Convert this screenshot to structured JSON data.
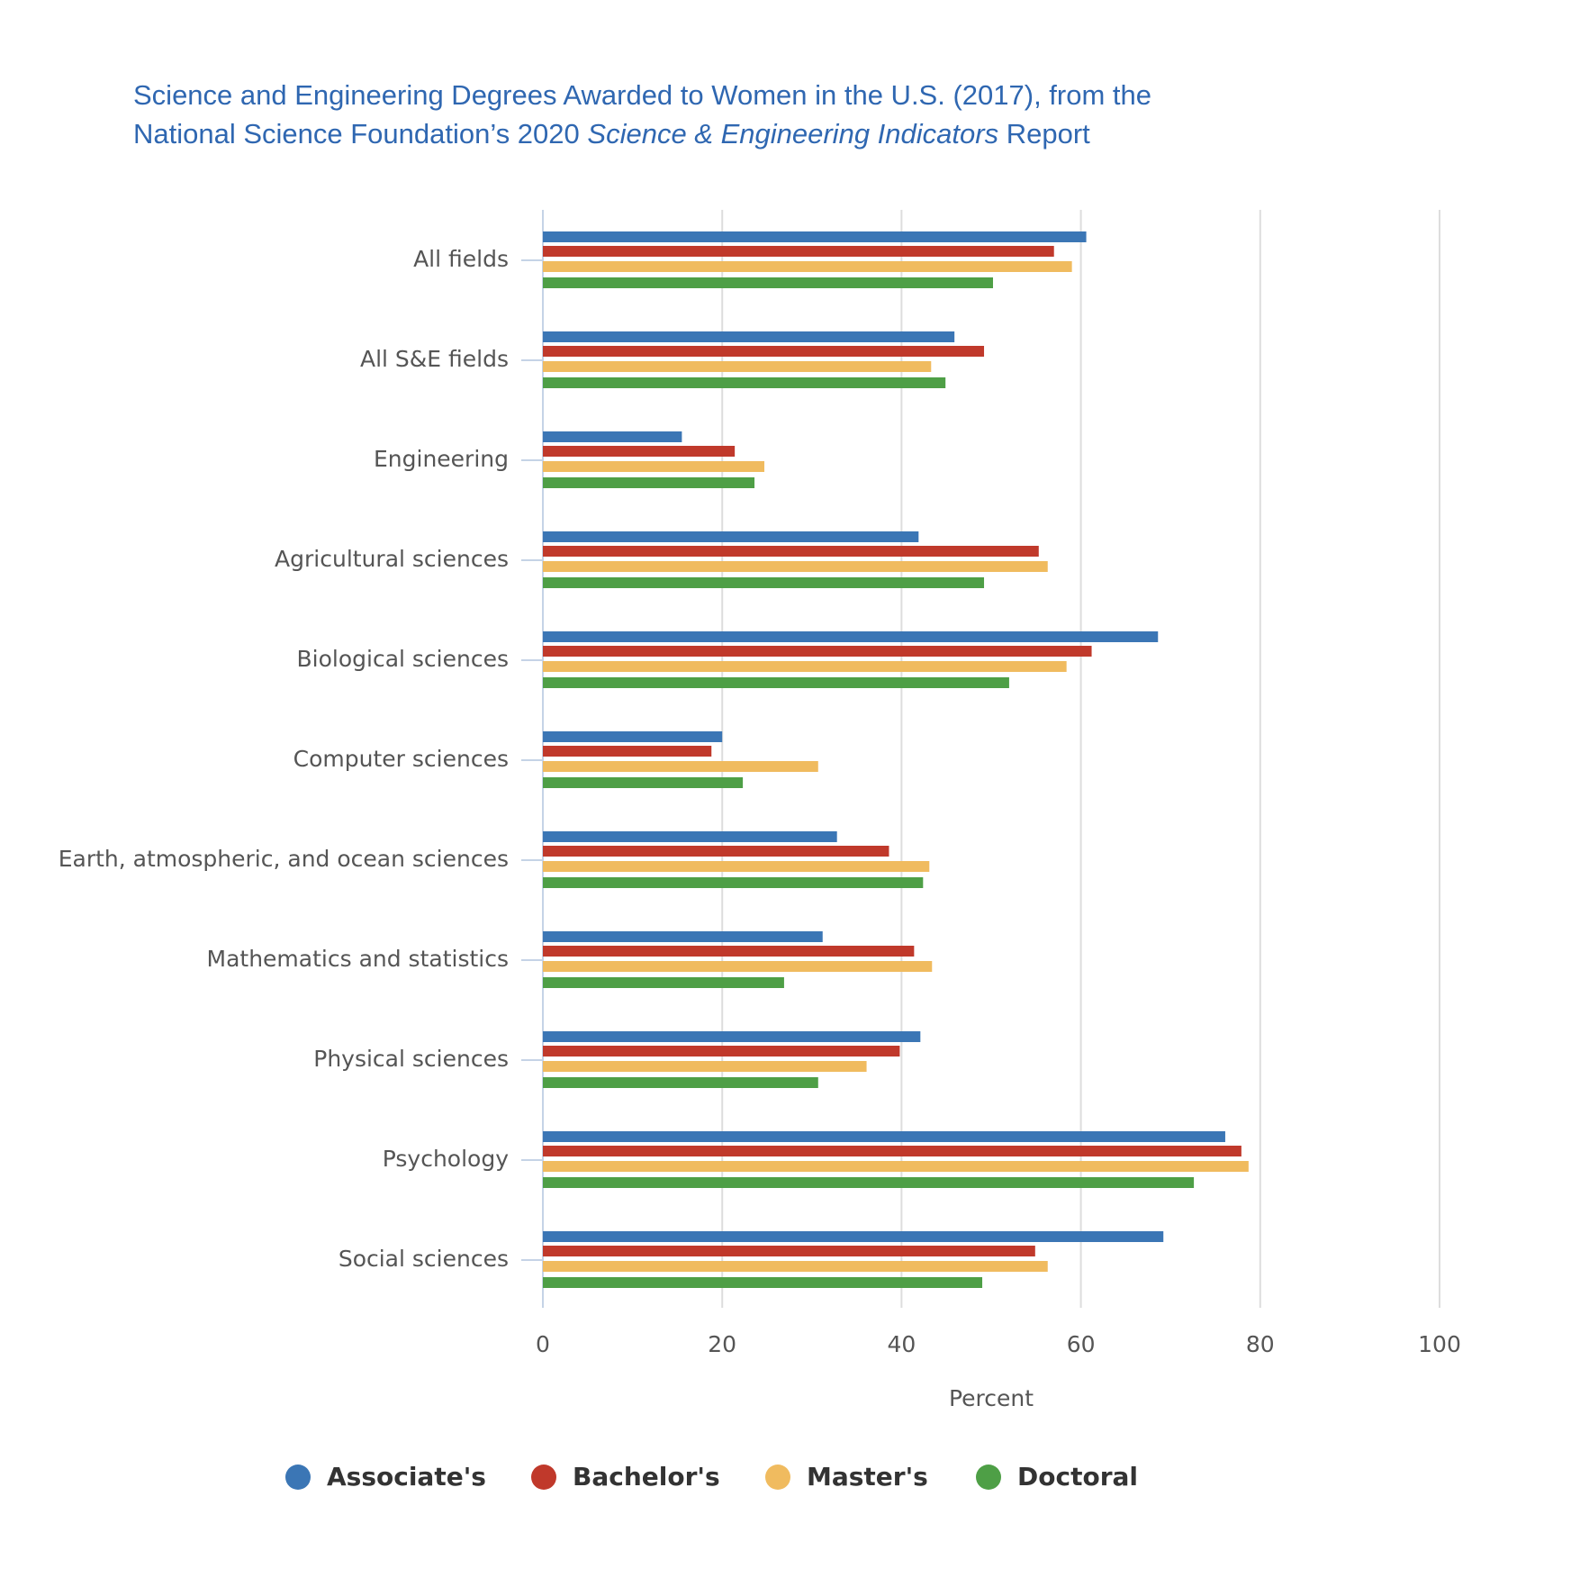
{
  "chart_data": {
    "type": "bar",
    "orientation": "horizontal",
    "title": [
      "Science and Engineering Degrees Awarded to Women in the U.S. (2017), from the",
      "National Science Foundation’s 2020",
      "Science & Engineering Indicators",
      "Report"
    ],
    "categories": [
      "All fields",
      "All S&E fields",
      "Engineering",
      "Agricultural sciences",
      "Biological sciences",
      "Computer sciences",
      "Earth, atmospheric, and ocean sciences",
      "Mathematics and statistics",
      "Physical sciences",
      "Psychology",
      "Social sciences"
    ],
    "series": [
      {
        "name": "Associate's",
        "color": "#3b76b5",
        "values": [
          60.6,
          45.9,
          15.5,
          41.9,
          68.6,
          20.0,
          32.8,
          31.2,
          42.1,
          76.1,
          69.2
        ]
      },
      {
        "name": "Bachelor's",
        "color": "#c0392b",
        "values": [
          57.0,
          49.2,
          21.4,
          55.3,
          61.2,
          18.8,
          38.6,
          41.4,
          39.8,
          77.9,
          54.9
        ]
      },
      {
        "name": "Master's",
        "color": "#f0bb5f",
        "values": [
          59.0,
          43.3,
          24.7,
          56.3,
          58.4,
          30.7,
          43.1,
          43.4,
          36.1,
          78.7,
          56.3
        ]
      },
      {
        "name": "Doctoral",
        "color": "#4e9f46",
        "values": [
          50.2,
          44.9,
          23.6,
          49.2,
          52.0,
          22.3,
          42.4,
          26.9,
          30.7,
          72.6,
          49.0
        ]
      }
    ],
    "x_label": "Percent",
    "xlim": [
      0,
      100
    ],
    "xticks": [
      0,
      20,
      40,
      60,
      80,
      100
    ],
    "grid": true
  }
}
